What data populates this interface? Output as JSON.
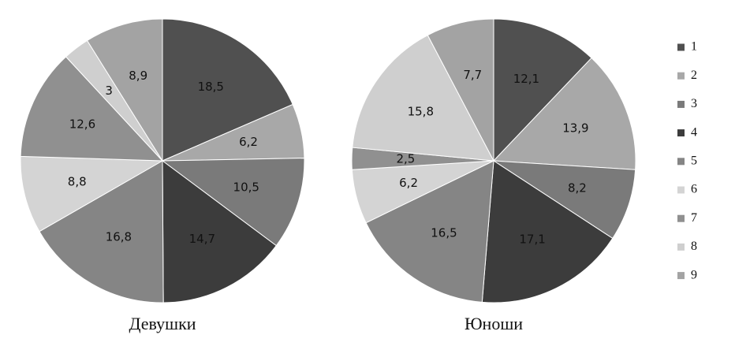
{
  "chart_data": [
    {
      "type": "pie",
      "title": "Девушки",
      "values": [
        18.5,
        6.2,
        10.5,
        14.7,
        16.8,
        8.8,
        12.6,
        3,
        8.9
      ],
      "value_labels": [
        "18,5",
        "6,2",
        "10,5",
        "14,7",
        "16,8",
        "8,8",
        "12,6",
        "3",
        "8,9"
      ]
    },
    {
      "type": "pie",
      "title": "Юноши",
      "values": [
        12.1,
        13.9,
        8.2,
        17.1,
        16.5,
        6.2,
        2.5,
        15.8,
        7.7
      ],
      "value_labels": [
        "12,1",
        "13,9",
        "8,2",
        "17,1",
        "16,5",
        "6,2",
        "2,5",
        "15,8",
        "7,7"
      ]
    }
  ],
  "legend": {
    "categories": [
      "1",
      "2",
      "3",
      "4",
      "5",
      "6",
      "7",
      "8",
      "9"
    ],
    "colors": [
      "#505050",
      "#a8a8a8",
      "#7a7a7a",
      "#3c3c3c",
      "#858585",
      "#d4d4d4",
      "#909090",
      "#cfcfcf",
      "#a3a3a3"
    ]
  }
}
